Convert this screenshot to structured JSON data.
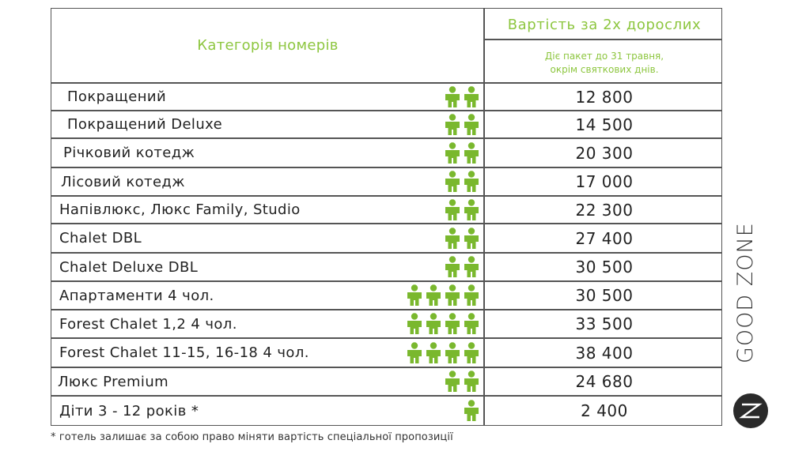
{
  "header": {
    "category": "Категорія номерів",
    "price": "Вартість за 2х дорослих",
    "note_line1": "Діє пакет до 31 травня,",
    "note_line2": "окрім святкових днів."
  },
  "rows": [
    {
      "name": "Покращений",
      "persons": 2,
      "price": "12 800"
    },
    {
      "name": "Покращений Deluxe",
      "persons": 2,
      "price": "14 500"
    },
    {
      "name": "Річковий котедж",
      "persons": 2,
      "price": "20 300"
    },
    {
      "name": "Лісовий котедж",
      "persons": 2,
      "price": "17 000"
    },
    {
      "name": "Напівлюкс, Люкс Family, Studio",
      "persons": 2,
      "price": "22 300"
    },
    {
      "name": "Chalet DBL",
      "persons": 2,
      "price": "27 400"
    },
    {
      "name": "Chalet Deluxe DBL",
      "persons": 2,
      "price": "30 500"
    },
    {
      "name": "Апартаменти 4 чол.",
      "persons": 4,
      "price": "30 500"
    },
    {
      "name": "Forest Chalet 1,2  4 чол.",
      "persons": 4,
      "price": "33 500"
    },
    {
      "name": "Forest Chalet 11-15, 16-18 4 чол.",
      "persons": 4,
      "price": "38 400"
    },
    {
      "name": "Люкс Premium",
      "persons": 2,
      "price": "24 680"
    },
    {
      "name": "Діти 3 - 12 років *",
      "persons": 1,
      "price": "2 400"
    }
  ],
  "footnote": "* готель залишає за собою право міняти вартість спеціальної пропозиції",
  "logo": {
    "text": "GOOD ZONE"
  },
  "colors": {
    "accent": "#8dc63f",
    "person_icon": "#7ab82e",
    "line": "#555555"
  }
}
